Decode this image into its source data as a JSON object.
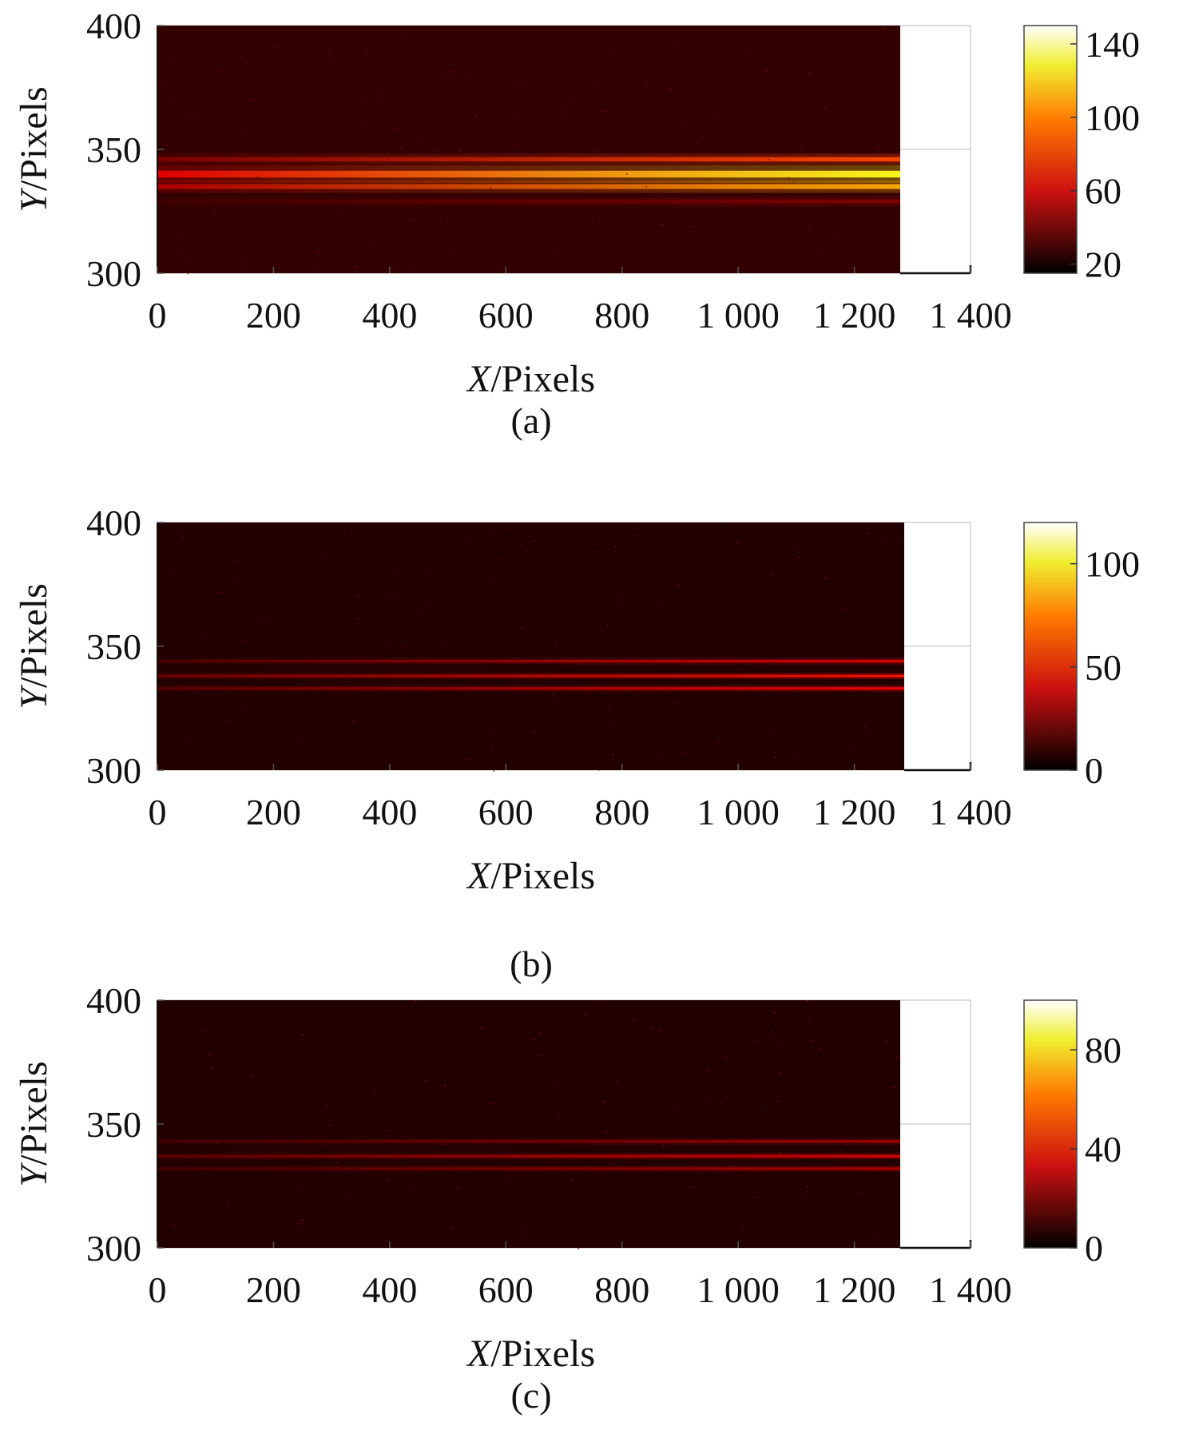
{
  "figure": {
    "panels": [
      {
        "caption": "(a)",
        "xlabel_var": "X",
        "xlabel_unit": "/Pixels",
        "ylabel_var": "Y",
        "ylabel_unit": "/Pixels",
        "xticks": [
          "0",
          "200",
          "400",
          "600",
          "800",
          "1 000",
          "1 200",
          "1 400"
        ],
        "yticks": [
          "400",
          "350",
          "300"
        ],
        "colorbar_ticks": [
          "140",
          "100",
          "60",
          "20"
        ]
      },
      {
        "caption": "(b)",
        "xlabel_var": "X",
        "xlabel_unit": "/Pixels",
        "ylabel_var": "Y",
        "ylabel_unit": "/Pixels",
        "xticks": [
          "0",
          "200",
          "400",
          "600",
          "800",
          "1 000",
          "1 200",
          "1 400"
        ],
        "yticks": [
          "400",
          "350",
          "300"
        ],
        "colorbar_ticks": [
          "100",
          "50",
          "0"
        ]
      },
      {
        "caption": "(c)",
        "xlabel_var": "X",
        "xlabel_unit": "/Pixels",
        "ylabel_var": "Y",
        "ylabel_unit": "/Pixels",
        "xticks": [
          "0",
          "200",
          "400",
          "600",
          "800",
          "1 000",
          "1 200",
          "1 400"
        ],
        "yticks": [
          "400",
          "350",
          "300"
        ],
        "colorbar_ticks": [
          "80",
          "40",
          "0"
        ]
      }
    ]
  },
  "chart_data": [
    {
      "type": "heatmap",
      "title": "",
      "caption": "(a)",
      "xlabel": "X/Pixels",
      "ylabel": "Y/Pixels",
      "xlim": [
        0,
        1400
      ],
      "ylim": [
        300,
        400
      ],
      "image_x_extent": [
        0,
        1280
      ],
      "xticks": [
        0,
        200,
        400,
        600,
        800,
        1000,
        1200,
        1400
      ],
      "yticks": [
        300,
        350,
        400
      ],
      "colormap": "hot",
      "colorbar": {
        "range": [
          15,
          150
        ],
        "ticks": [
          20,
          60,
          100,
          140
        ]
      },
      "background_level": 25,
      "bands": [
        {
          "y": 346,
          "peak_start": 40,
          "peak_end": 80,
          "width": 1.6
        },
        {
          "y": 340,
          "peak_start": 60,
          "peak_end": 120,
          "width": 2.5
        },
        {
          "y": 335,
          "peak_start": 50,
          "peak_end": 100,
          "width": 1.8
        },
        {
          "y": 329,
          "peak_start": 28,
          "peak_end": 40,
          "width": 1.5
        }
      ],
      "grid": true,
      "legend": "colorbar-right"
    },
    {
      "type": "heatmap",
      "title": "",
      "caption": "(b)",
      "xlabel": "X/Pixels",
      "ylabel": "Y/Pixels",
      "xlim": [
        0,
        1400
      ],
      "ylim": [
        300,
        400
      ],
      "image_x_extent": [
        0,
        1280
      ],
      "xticks": [
        0,
        200,
        400,
        600,
        800,
        1000,
        1200,
        1400
      ],
      "yticks": [
        300,
        350,
        400
      ],
      "colormap": "hot",
      "colorbar": {
        "range": [
          0,
          120
        ],
        "ticks": [
          0,
          50,
          100
        ]
      },
      "background_level": 6,
      "bands": [
        {
          "y": 344,
          "peak_start": 14,
          "peak_end": 40,
          "width": 0.9
        },
        {
          "y": 338,
          "peak_start": 20,
          "peak_end": 48,
          "width": 0.9
        },
        {
          "y": 333,
          "peak_start": 16,
          "peak_end": 44,
          "width": 0.9
        }
      ],
      "grid": true,
      "legend": "colorbar-right"
    },
    {
      "type": "heatmap",
      "title": "",
      "caption": "(c)",
      "xlabel": "X/Pixels",
      "ylabel": "Y/Pixels",
      "xlim": [
        0,
        1400
      ],
      "ylim": [
        300,
        400
      ],
      "image_x_extent": [
        0,
        1280
      ],
      "xticks": [
        0,
        200,
        400,
        600,
        800,
        1000,
        1200,
        1400
      ],
      "yticks": [
        300,
        350,
        400
      ],
      "colormap": "hot",
      "colorbar": {
        "range": [
          0,
          100
        ],
        "ticks": [
          0,
          40,
          80
        ]
      },
      "background_level": 5,
      "bands": [
        {
          "y": 343,
          "peak_start": 10,
          "peak_end": 24,
          "width": 0.9
        },
        {
          "y": 337,
          "peak_start": 14,
          "peak_end": 32,
          "width": 0.9
        },
        {
          "y": 332,
          "peak_start": 10,
          "peak_end": 26,
          "width": 0.9
        }
      ],
      "grid": true,
      "legend": "colorbar-right"
    }
  ]
}
